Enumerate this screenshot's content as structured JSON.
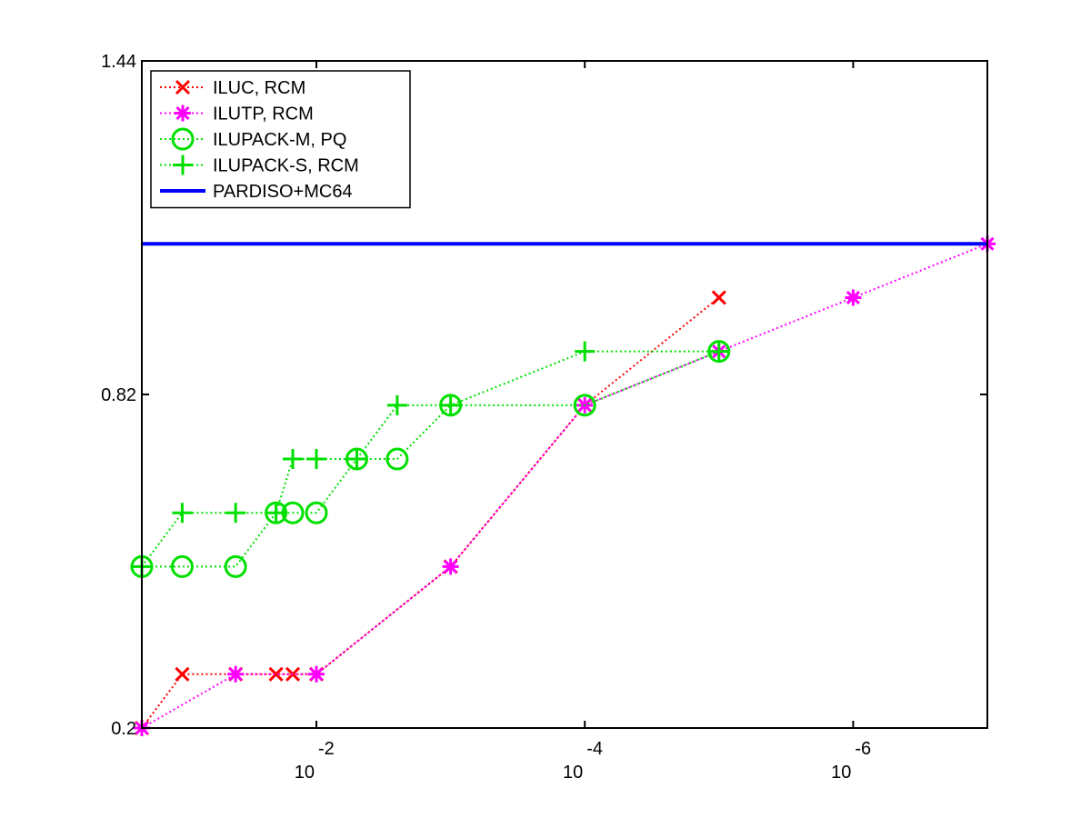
{
  "chart_data": {
    "type": "line",
    "title": "",
    "xlabel": "",
    "ylabel": "",
    "x_scale": "log",
    "x_direction": "decreasing",
    "x_tick_labels": [
      {
        "base": "10",
        "exponent": "-2",
        "value": 0.01
      },
      {
        "base": "10",
        "exponent": "-4",
        "value": 0.0001
      },
      {
        "base": "10",
        "exponent": "-6",
        "value": 1e-06
      }
    ],
    "y_tick_labels": [
      "0.2",
      "0.82",
      "1.44"
    ],
    "ylim": [
      0.2,
      1.44
    ],
    "legend_position": "top-left",
    "grid": false,
    "series": [
      {
        "name": "ILUC, RCM",
        "color": "#ff0000",
        "marker": "x",
        "linestyle": "dotted",
        "points": [
          {
            "x": 0.2,
            "y": 0.2
          },
          {
            "x": 0.1,
            "y": 0.3
          },
          {
            "x": 0.04,
            "y": 0.3
          },
          {
            "x": 0.02,
            "y": 0.3
          },
          {
            "x": 0.015,
            "y": 0.3
          },
          {
            "x": 0.01,
            "y": 0.3
          },
          {
            "x": 0.001,
            "y": 0.5
          },
          {
            "x": 0.0001,
            "y": 0.8
          },
          {
            "x": 1e-05,
            "y": 1.0
          }
        ]
      },
      {
        "name": "ILUTP, RCM",
        "color": "#ff00ff",
        "marker": "asterisk",
        "linestyle": "dotted",
        "points": [
          {
            "x": 0.2,
            "y": 0.2
          },
          {
            "x": 0.04,
            "y": 0.3
          },
          {
            "x": 0.01,
            "y": 0.3
          },
          {
            "x": 0.001,
            "y": 0.5
          },
          {
            "x": 0.0001,
            "y": 0.8
          },
          {
            "x": 1e-05,
            "y": 0.9
          },
          {
            "x": 1e-06,
            "y": 1.0
          },
          {
            "x": 1e-07,
            "y": 1.1
          }
        ]
      },
      {
        "name": "ILUPACK-M, PQ",
        "color": "#00e000",
        "marker": "circle",
        "linestyle": "dotted",
        "points": [
          {
            "x": 0.2,
            "y": 0.5
          },
          {
            "x": 0.1,
            "y": 0.5
          },
          {
            "x": 0.04,
            "y": 0.5
          },
          {
            "x": 0.02,
            "y": 0.6
          },
          {
            "x": 0.015,
            "y": 0.6
          },
          {
            "x": 0.01,
            "y": 0.6
          },
          {
            "x": 0.005,
            "y": 0.7
          },
          {
            "x": 0.0025,
            "y": 0.7
          },
          {
            "x": 0.001,
            "y": 0.8
          },
          {
            "x": 0.0001,
            "y": 0.8
          },
          {
            "x": 1e-05,
            "y": 0.9
          }
        ]
      },
      {
        "name": "ILUPACK-S, RCM",
        "color": "#00e000",
        "marker": "plus",
        "linestyle": "dotted",
        "points": [
          {
            "x": 0.2,
            "y": 0.5
          },
          {
            "x": 0.1,
            "y": 0.6
          },
          {
            "x": 0.04,
            "y": 0.6
          },
          {
            "x": 0.02,
            "y": 0.6
          },
          {
            "x": 0.015,
            "y": 0.7
          },
          {
            "x": 0.01,
            "y": 0.7
          },
          {
            "x": 0.005,
            "y": 0.7
          },
          {
            "x": 0.0025,
            "y": 0.8
          },
          {
            "x": 0.001,
            "y": 0.8
          },
          {
            "x": 0.0001,
            "y": 0.9
          },
          {
            "x": 1e-05,
            "y": 0.9
          }
        ]
      },
      {
        "name": "PARDISO+MC64",
        "color": "#0000ff",
        "marker": "none",
        "linestyle": "solid",
        "points": [
          {
            "x": 0.2,
            "y": 1.1
          },
          {
            "x": 1e-07,
            "y": 1.1
          }
        ]
      }
    ]
  }
}
